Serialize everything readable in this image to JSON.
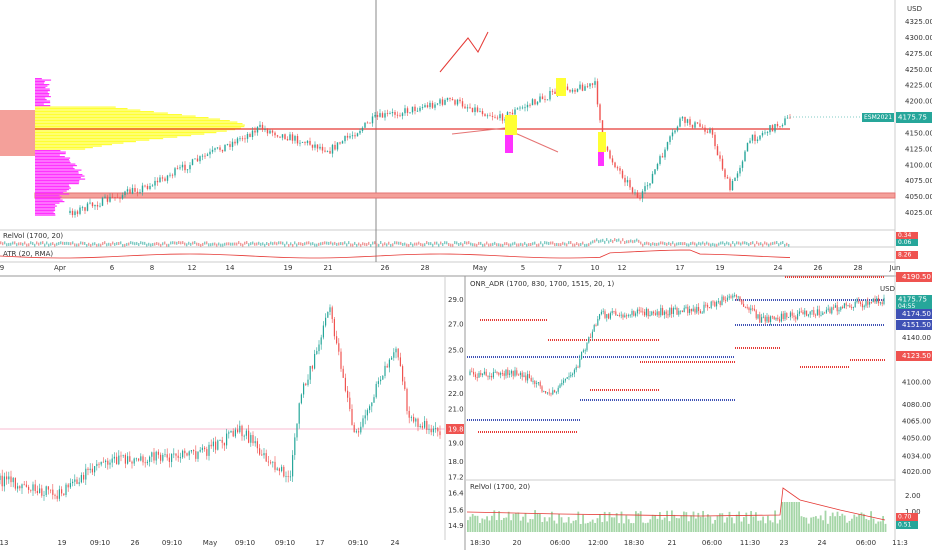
{
  "top": {
    "currency": "USD",
    "price_ticks": [
      "4325.00",
      "4300.00",
      "4275.00",
      "4250.00",
      "4225.00",
      "4200.00",
      "4150.00",
      "4125.00",
      "4100.00",
      "4075.00",
      "4050.00",
      "4025.00"
    ],
    "symbol": "ESM2021",
    "last_price": "4175.75",
    "relvol_label": "RelVol (1700, 20)",
    "relvol_values": [
      "0.34",
      "0.06"
    ],
    "atr_label": "ATR (20, RMA)",
    "atr_value": "8.26",
    "dates": [
      "9",
      "Apr",
      "6",
      "8",
      "12",
      "14",
      "19",
      "21",
      "26",
      "28",
      "May",
      "5",
      "7",
      "10",
      "12",
      "17",
      "19",
      "24",
      "26",
      "28",
      "Jun"
    ]
  },
  "bottom_left": {
    "price_ticks": [
      "29.0",
      "27.0",
      "25.0",
      "23.0",
      "22.0",
      "21.0",
      "19.0",
      "18.0",
      "17.2",
      "16.4",
      "15.6",
      "14.9"
    ],
    "last_price": "19.8",
    "dates": [
      "13",
      "19",
      "09:10",
      "26",
      "09:10",
      "May",
      "09:10",
      "09:10",
      "17",
      "09:10",
      "24"
    ]
  },
  "bottom_right": {
    "currency": "USD",
    "indicator": "ONR_ADR (1700, 830, 1700, 1515, 20, 1)",
    "price_ticks": [
      "4140.00",
      "4100.00",
      "4080.00",
      "4065.00",
      "4050.00",
      "4034.00",
      "4020.00"
    ],
    "last_price": "4175.75",
    "countdown": "04:55",
    "level_tags": [
      "4190.50",
      "4174.50",
      "4151.50",
      "4123.50"
    ],
    "relvol_label": "RelVol (1700, 20)",
    "relvol_ticks": [
      "2.00",
      "1.00"
    ],
    "relvol_values": [
      "0.70",
      "0.51"
    ],
    "dates": [
      "18:30",
      "20",
      "06:00",
      "12:00",
      "18:30",
      "21",
      "06:00",
      "11:30",
      "23",
      "24",
      "06:00",
      "11:3"
    ]
  }
}
